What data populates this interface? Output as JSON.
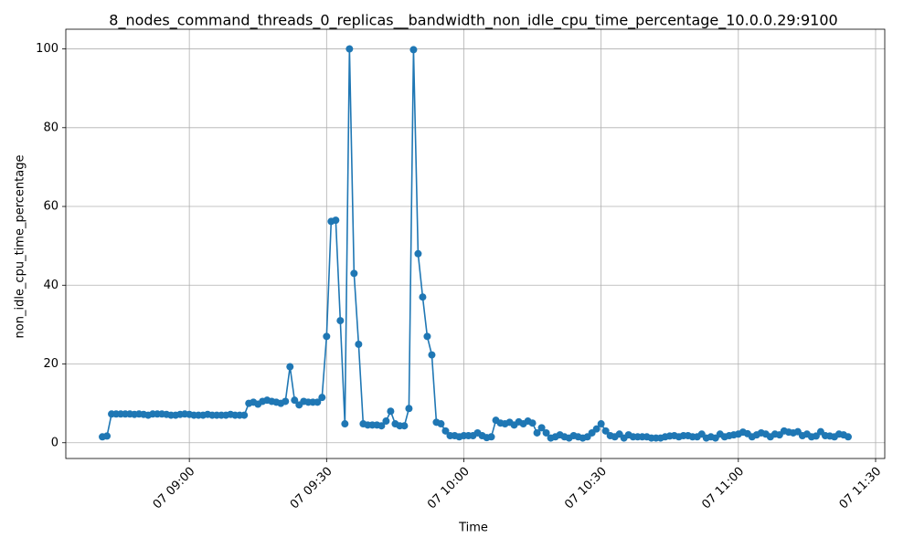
{
  "chart_data": {
    "type": "line",
    "title": "8_nodes_command_threads_0_replicas__bandwidth_non_idle_cpu_time_percentage_10.0.0.29:9100",
    "xlabel": "Time",
    "ylabel": "non_idle_cpu_time_percentage",
    "x": [
      "07 08:41",
      "07 08:42",
      "07 08:43",
      "07 08:44",
      "07 08:45",
      "07 08:46",
      "07 08:47",
      "07 08:48",
      "07 08:49",
      "07 08:50",
      "07 08:51",
      "07 08:52",
      "07 08:53",
      "07 08:54",
      "07 08:55",
      "07 08:56",
      "07 08:57",
      "07 08:58",
      "07 08:59",
      "07 09:00",
      "07 09:01",
      "07 09:02",
      "07 09:03",
      "07 09:04",
      "07 09:05",
      "07 09:06",
      "07 09:07",
      "07 09:08",
      "07 09:09",
      "07 09:10",
      "07 09:11",
      "07 09:12",
      "07 09:13",
      "07 09:14",
      "07 09:15",
      "07 09:16",
      "07 09:17",
      "07 09:18",
      "07 09:19",
      "07 09:20",
      "07 09:21",
      "07 09:22",
      "07 09:23",
      "07 09:24",
      "07 09:25",
      "07 09:26",
      "07 09:27",
      "07 09:28",
      "07 09:29",
      "07 09:30",
      "07 09:31",
      "07 09:32",
      "07 09:33",
      "07 09:34",
      "07 09:35",
      "07 09:36",
      "07 09:37",
      "07 09:38",
      "07 09:39",
      "07 09:40",
      "07 09:41",
      "07 09:42",
      "07 09:43",
      "07 09:44",
      "07 09:45",
      "07 09:46",
      "07 09:47",
      "07 09:48",
      "07 09:49",
      "07 09:50",
      "07 09:51",
      "07 09:52",
      "07 09:53",
      "07 09:54",
      "07 09:55",
      "07 09:56",
      "07 09:57",
      "07 09:58",
      "07 09:59",
      "07 10:00",
      "07 10:01",
      "07 10:02",
      "07 10:03",
      "07 10:04",
      "07 10:05",
      "07 10:06",
      "07 10:07",
      "07 10:08",
      "07 10:09",
      "07 10:10",
      "07 10:11",
      "07 10:12",
      "07 10:13",
      "07 10:14",
      "07 10:15",
      "07 10:16",
      "07 10:17",
      "07 10:18",
      "07 10:19",
      "07 10:20",
      "07 10:21",
      "07 10:22",
      "07 10:23",
      "07 10:24",
      "07 10:25",
      "07 10:26",
      "07 10:27",
      "07 10:28",
      "07 10:29",
      "07 10:30",
      "07 10:31",
      "07 10:32",
      "07 10:33",
      "07 10:34",
      "07 10:35",
      "07 10:36",
      "07 10:37",
      "07 10:38",
      "07 10:39",
      "07 10:40",
      "07 10:41",
      "07 10:42",
      "07 10:43",
      "07 10:44",
      "07 10:45",
      "07 10:46",
      "07 10:47",
      "07 10:48",
      "07 10:49",
      "07 10:50",
      "07 10:51",
      "07 10:52",
      "07 10:53",
      "07 10:54",
      "07 10:55",
      "07 10:56",
      "07 10:57",
      "07 10:58",
      "07 10:59",
      "07 11:00",
      "07 11:01",
      "07 11:02",
      "07 11:03",
      "07 11:04",
      "07 11:05",
      "07 11:06",
      "07 11:07",
      "07 11:08",
      "07 11:09",
      "07 11:10",
      "07 11:11",
      "07 11:12",
      "07 11:13",
      "07 11:14",
      "07 11:15",
      "07 11:16",
      "07 11:17",
      "07 11:18",
      "07 11:19",
      "07 11:20",
      "07 11:21",
      "07 11:22",
      "07 11:23",
      "07 11:24"
    ],
    "series": [
      {
        "color": "#1f77b4",
        "values": [
          1.5,
          1.7,
          7.3,
          7.3,
          7.3,
          7.3,
          7.3,
          7.2,
          7.3,
          7.2,
          7.0,
          7.3,
          7.3,
          7.3,
          7.2,
          7.0,
          7.0,
          7.2,
          7.3,
          7.2,
          7.0,
          7.0,
          7.0,
          7.2,
          7.0,
          7.0,
          7.0,
          7.0,
          7.2,
          7.0,
          7.0,
          7.0,
          10.0,
          10.3,
          9.8,
          10.5,
          10.8,
          10.5,
          10.3,
          10.0,
          10.5,
          19.3,
          10.8,
          9.6,
          10.5,
          10.3,
          10.3,
          10.3,
          11.5,
          27,
          56.2,
          56.5,
          31,
          4.8,
          100,
          43,
          25,
          4.8,
          4.5,
          4.5,
          4.5,
          4.3,
          5.5,
          8,
          4.8,
          4.3,
          4.3,
          8.7,
          99.8,
          48,
          37,
          27,
          22.3,
          5.2,
          4.8,
          3,
          1.8,
          1.8,
          1.5,
          1.8,
          1.8,
          1.8,
          2.5,
          1.8,
          1.3,
          1.5,
          5.7,
          5,
          4.8,
          5.2,
          4.5,
          5.3,
          4.8,
          5.5,
          5,
          2.5,
          3.8,
          2.5,
          1.2,
          1.5,
          2,
          1.5,
          1.2,
          1.8,
          1.5,
          1.2,
          1.5,
          2.5,
          3.5,
          4.8,
          3,
          1.8,
          1.5,
          2.2,
          1.2,
          2,
          1.5,
          1.5,
          1.5,
          1.5,
          1.2,
          1.2,
          1.2,
          1.5,
          1.7,
          1.8,
          1.5,
          1.8,
          1.8,
          1.5,
          1.5,
          2.2,
          1.2,
          1.5,
          1.2,
          2.2,
          1.5,
          1.8,
          2,
          2.2,
          2.7,
          2.3,
          1.5,
          2,
          2.5,
          2.2,
          1.5,
          2.2,
          2,
          3,
          2.7,
          2.5,
          2.8,
          1.8,
          2.2,
          1.5,
          1.7,
          2.8,
          1.8,
          1.7,
          1.5,
          2.2,
          2,
          1.5
        ]
      }
    ],
    "xlim": [
      "07 08:33",
      "07 11:32"
    ],
    "xticks": [
      "07 09:00",
      "07 09:30",
      "07 10:00",
      "07 10:30",
      "07 11:00",
      "07 11:30"
    ],
    "ylim": [
      -4,
      105
    ],
    "yticks": [
      0,
      20,
      40,
      60,
      80,
      100
    ],
    "grid": true
  }
}
